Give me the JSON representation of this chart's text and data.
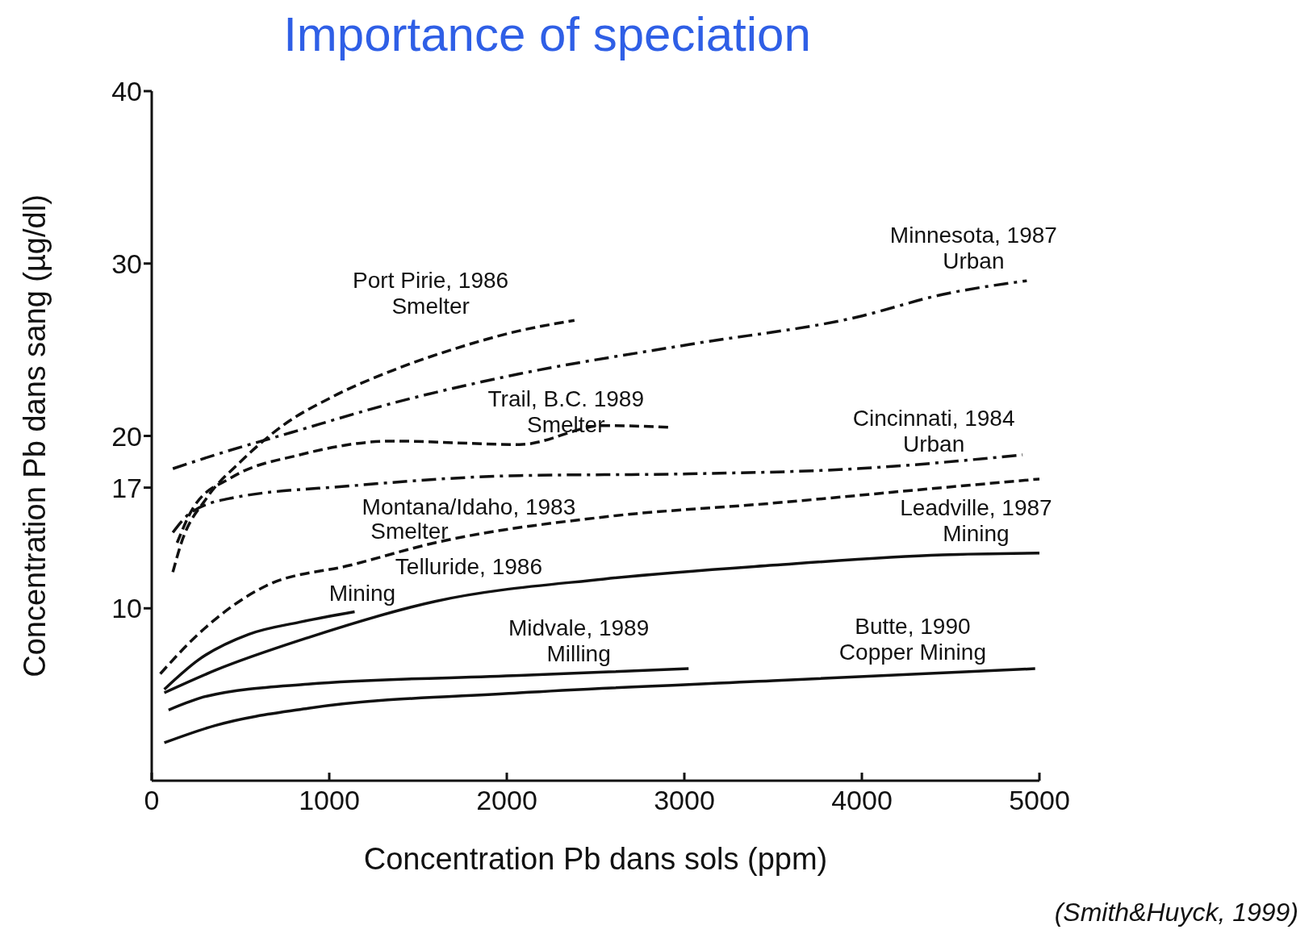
{
  "chart_data": {
    "type": "line",
    "title": "Importance of speciation",
    "xlabel": "Concentration Pb dans sols (ppm)",
    "ylabel": "Concentration Pb dans sang (µg/dl)",
    "xlim": [
      0,
      5000
    ],
    "xticks": [
      0,
      1000,
      2000,
      3000,
      4000,
      5000
    ],
    "ylim": [
      0,
      40
    ],
    "yticks": [
      10,
      17,
      20,
      30,
      40
    ],
    "grid": false,
    "marker": "none",
    "series": [
      {
        "name": "Port Pirie, 1986\nSmelter",
        "color": "#111111",
        "line_style": "dashed",
        "x": [
          119,
          167,
          310,
          500,
          738,
          1024,
          1357,
          1690,
          2071,
          2381
        ],
        "values": [
          12.1,
          13.8,
          16.4,
          18.5,
          20.6,
          22.3,
          23.8,
          25.0,
          26.1,
          26.7
        ]
      },
      {
        "name": "Minnesota, 1987\nUrban",
        "color": "#111111",
        "line_style": "dashdot",
        "x": [
          119,
          357,
          786,
          1357,
          2071,
          3024,
          3976,
          4452,
          4929
        ],
        "values": [
          18.1,
          18.9,
          20.2,
          21.9,
          23.6,
          25.3,
          26.9,
          28.2,
          29.0
        ]
      },
      {
        "name": "Trail, B.C. 1989\nSmelter",
        "color": "#111111",
        "line_style": "dashed",
        "x": [
          143,
          238,
          452,
          833,
          1357,
          2071,
          2548,
          2929
        ],
        "values": [
          13.8,
          15.9,
          17.6,
          18.9,
          19.7,
          19.5,
          20.6,
          20.5
        ]
      },
      {
        "name": "Cincinnati, 1984\nUrban",
        "color": "#111111",
        "line_style": "dashdot",
        "x": [
          119,
          214,
          452,
          1119,
          2071,
          3024,
          3976,
          4905
        ],
        "values": [
          14.4,
          15.5,
          16.4,
          17.1,
          17.7,
          17.8,
          18.1,
          18.9
        ]
      },
      {
        "name": "Montana/Idaho, 1983\nSmelter",
        "color": "#111111",
        "line_style": "dashed",
        "x": [
          48,
          262,
          643,
          1119,
          1595,
          2548,
          3500,
          4452,
          5000
        ],
        "values": [
          6.2,
          8.5,
          11.3,
          12.5,
          13.8,
          15.3,
          16.1,
          17.0,
          17.5
        ]
      },
      {
        "name": "Telluride, 1986\nMining",
        "color": "#111111",
        "line_style": "solid",
        "x": [
          71,
          262,
          548,
          833,
          1143
        ],
        "values": [
          5.3,
          7.0,
          8.5,
          9.2,
          9.8
        ]
      },
      {
        "name": "Leadville, 1987\nMining",
        "color": "#111111",
        "line_style": "solid",
        "x": [
          71,
          357,
          881,
          1595,
          2548,
          3500,
          4452,
          5000
        ],
        "values": [
          5.1,
          6.4,
          8.3,
          10.4,
          11.7,
          12.5,
          13.1,
          13.2
        ]
      },
      {
        "name": "Midvale, 1989\nMilling",
        "color": "#111111",
        "line_style": "solid",
        "x": [
          95,
          310,
          881,
          2071,
          3024
        ],
        "values": [
          4.1,
          4.9,
          5.6,
          6.1,
          6.5
        ]
      },
      {
        "name": "Butte, 1990\nCopper Mining",
        "color": "#111111",
        "line_style": "solid",
        "x": [
          71,
          357,
          881,
          2071,
          3500,
          4976
        ],
        "values": [
          2.2,
          3.2,
          4.2,
          5.1,
          5.8,
          6.5
        ]
      }
    ],
    "annotations": [
      "(Smith&Huyck, 1999)"
    ]
  }
}
